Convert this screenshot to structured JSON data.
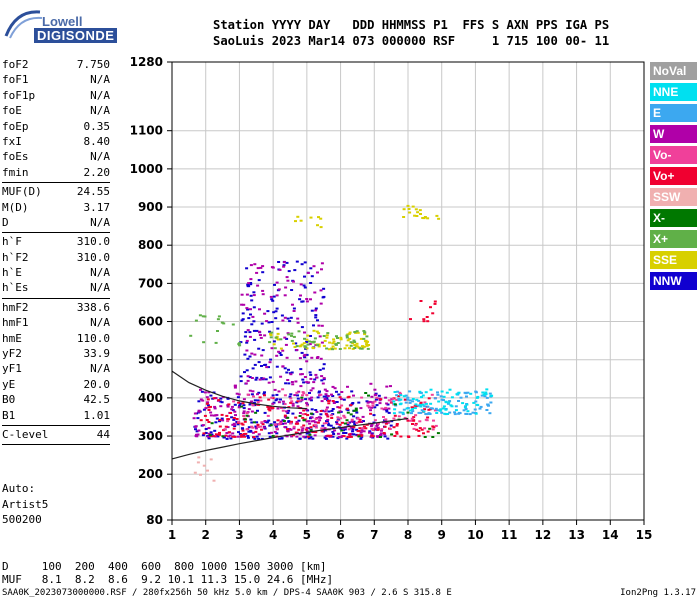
{
  "logo": {
    "line1": "Lowell",
    "line2": "DIGISONDE"
  },
  "header": {
    "row1": "Station YYYY DAY   DDD HHMMSS P1  FFS S AXN PPS IGA PS",
    "row2": "SaoLuis 2023 Mar14 073 000000 RSF     1 715 100 00- 11"
  },
  "params": [
    [
      {
        "k": "foF2",
        "v": "7.750"
      },
      {
        "k": "foF1",
        "v": "N/A"
      },
      {
        "k": "foF1p",
        "v": "N/A"
      },
      {
        "k": "foE",
        "v": "N/A"
      },
      {
        "k": "foEp",
        "v": "0.35"
      },
      {
        "k": "fxI",
        "v": "8.40"
      },
      {
        "k": "foEs",
        "v": "N/A"
      },
      {
        "k": "fmin",
        "v": "2.20"
      }
    ],
    [
      {
        "k": "MUF(D)",
        "v": "24.55"
      },
      {
        "k": "M(D)",
        "v": "3.17"
      },
      {
        "k": "D",
        "v": "N/A"
      }
    ],
    [
      {
        "k": "h`F",
        "v": "310.0"
      },
      {
        "k": "h`F2",
        "v": "310.0"
      },
      {
        "k": "h`E",
        "v": "N/A"
      },
      {
        "k": "h`Es",
        "v": "N/A"
      }
    ],
    [
      {
        "k": "hmF2",
        "v": "338.6"
      },
      {
        "k": "hmF1",
        "v": "N/A"
      },
      {
        "k": "hmE",
        "v": "110.0"
      },
      {
        "k": "yF2",
        "v": "33.9"
      },
      {
        "k": "yF1",
        "v": "N/A"
      },
      {
        "k": "yE",
        "v": "20.0"
      },
      {
        "k": "B0",
        "v": "42.5"
      },
      {
        "k": "B1",
        "v": "1.01"
      }
    ],
    [
      {
        "k": "C-level",
        "v": "44"
      }
    ]
  ],
  "auto": {
    "l1": "Auto:",
    "l2": "Artist5",
    "l3": "500200"
  },
  "legend": [
    {
      "label": "NoVal",
      "color": "#a0a0a0"
    },
    {
      "label": "NNE",
      "color": "#00e0f0"
    },
    {
      "label": "E",
      "color": "#3ca8f0"
    },
    {
      "label": "W",
      "color": "#b000a8"
    },
    {
      "label": "Vo-",
      "color": "#f0409a"
    },
    {
      "label": "Vo+",
      "color": "#f00030"
    },
    {
      "label": "SSW",
      "color": "#f0b0b0"
    },
    {
      "label": "X-",
      "color": "#007800"
    },
    {
      "label": "X+",
      "color": "#60b048"
    },
    {
      "label": "SSE",
      "color": "#d8d000"
    },
    {
      "label": "NNW",
      "color": "#1000d0"
    }
  ],
  "bottom": {
    "row1": "D     100  200  400  600  800 1000 1500 3000 [km]",
    "row2": "MUF   8.1  8.2  8.6  9.2 10.1 11.3 15.0 24.6 [MHz]",
    "footer": "SAA0K_2023073000000.RSF / 280fx256h 50 kHz 5.0 km / DPS-4 SAA0K 903 / 2.6 S 315.8 E",
    "version": "Ion2Png 1.3.17"
  },
  "chart_data": {
    "type": "scatter",
    "title": "",
    "xlabel": "",
    "ylabel": "",
    "xlim": [
      1,
      15
    ],
    "ylim": [
      80,
      1280
    ],
    "x_ticks": [
      1,
      2,
      3,
      4,
      5,
      6,
      7,
      8,
      9,
      10,
      11,
      12,
      13,
      14,
      15
    ],
    "y_ticks": [
      80,
      200,
      300,
      400,
      500,
      600,
      700,
      800,
      900,
      1000,
      1100,
      1280
    ],
    "grid": true,
    "traces": [
      {
        "name": "",
        "x": [
          1.0,
          1.5,
          2.0,
          2.5,
          3.0,
          3.5,
          4.0,
          4.5,
          5.0,
          5.5,
          6.0,
          6.5,
          7.0,
          7.5,
          8.0
        ],
        "y": [
          240,
          252,
          262,
          271,
          280,
          288,
          296,
          303,
          310,
          316,
          322,
          328,
          334,
          340,
          346
        ]
      },
      {
        "name": "",
        "x": [
          1.0,
          1.5,
          2.0,
          2.5,
          3.0,
          3.5,
          4.0,
          4.5,
          5.0
        ],
        "y": [
          470,
          440,
          420,
          404,
          392,
          384,
          378,
          374,
          372
        ]
      }
    ],
    "clusters": [
      {
        "color": "#1000d0",
        "x": [
          1.6,
          7.5
        ],
        "y": [
          295,
          420
        ],
        "n": 260
      },
      {
        "color": "#b000a8",
        "x": [
          1.6,
          7.5
        ],
        "y": [
          300,
          440
        ],
        "n": 240
      },
      {
        "color": "#f00030",
        "x": [
          1.8,
          8.8
        ],
        "y": [
          300,
          410
        ],
        "n": 180
      },
      {
        "color": "#f0409a",
        "x": [
          2.5,
          8.8
        ],
        "y": [
          320,
          430
        ],
        "n": 110
      },
      {
        "color": "#3ca8f0",
        "x": [
          7.5,
          10.5
        ],
        "y": [
          360,
          420
        ],
        "n": 90
      },
      {
        "color": "#00e0f0",
        "x": [
          7.5,
          10.5
        ],
        "y": [
          360,
          430
        ],
        "n": 70
      },
      {
        "color": "#1000d0",
        "x": [
          3.0,
          5.5
        ],
        "y": [
          440,
          760
        ],
        "n": 140
      },
      {
        "color": "#b000a8",
        "x": [
          3.0,
          5.5
        ],
        "y": [
          440,
          760
        ],
        "n": 120
      },
      {
        "color": "#d8d000",
        "x": [
          3.8,
          6.8
        ],
        "y": [
          530,
          580
        ],
        "n": 70
      },
      {
        "color": "#60b048",
        "x": [
          3.8,
          6.8
        ],
        "y": [
          530,
          580
        ],
        "n": 50
      },
      {
        "color": "#d8d000",
        "x": [
          7.8,
          8.9
        ],
        "y": [
          870,
          910
        ],
        "n": 18
      },
      {
        "color": "#d8d000",
        "x": [
          4.6,
          5.4
        ],
        "y": [
          850,
          880
        ],
        "n": 8
      },
      {
        "color": "#f00030",
        "x": [
          8.0,
          8.8
        ],
        "y": [
          600,
          660
        ],
        "n": 10
      },
      {
        "color": "#60b048",
        "x": [
          1.5,
          3.0
        ],
        "y": [
          540,
          620
        ],
        "n": 16
      },
      {
        "color": "#f0b0b0",
        "x": [
          1.6,
          2.2
        ],
        "y": [
          180,
          260
        ],
        "n": 8
      },
      {
        "color": "#007800",
        "x": [
          2.0,
          9.0
        ],
        "y": [
          300,
          420
        ],
        "n": 40
      }
    ]
  }
}
